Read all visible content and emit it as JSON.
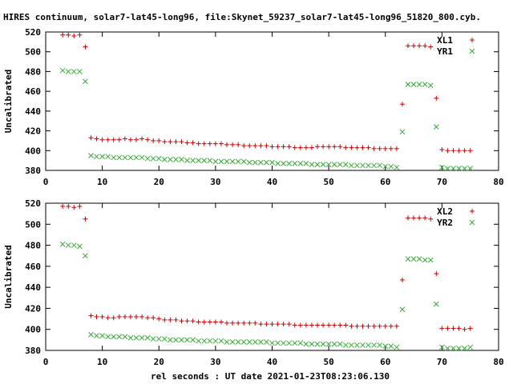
{
  "title": "HIRES continuum, solar7-lat45-long96, file:Skynet_59237_solar7-lat45-long96_51820_800.cyb.",
  "xlabel": "rel seconds : UT date 2021-01-23T08:23:06.130",
  "colors": {
    "red_series": "#cc0000",
    "green_series": "#33aa33",
    "axis": "#000000"
  },
  "chart_data": [
    {
      "type": "scatter",
      "ylabel": "Uncalibrated",
      "xlim": [
        0,
        80
      ],
      "ylim": [
        380,
        520
      ],
      "xticks": [
        0,
        10,
        20,
        30,
        40,
        50,
        60,
        70,
        80
      ],
      "yticks": [
        380,
        400,
        420,
        440,
        460,
        480,
        500,
        520
      ],
      "legend_position": "top-right",
      "series": [
        {
          "name": "XL1",
          "marker": "+",
          "color": "#cc0000",
          "x": [
            3,
            4,
            5,
            6,
            7,
            8,
            9,
            10,
            11,
            12,
            13,
            14,
            15,
            16,
            17,
            18,
            19,
            20,
            21,
            22,
            23,
            24,
            25,
            26,
            27,
            28,
            29,
            30,
            31,
            32,
            33,
            34,
            35,
            36,
            37,
            38,
            39,
            40,
            41,
            42,
            43,
            44,
            45,
            46,
            47,
            48,
            49,
            50,
            51,
            52,
            53,
            54,
            55,
            56,
            57,
            58,
            59,
            60,
            61,
            62,
            63,
            64,
            65,
            66,
            67,
            68,
            69,
            70,
            71,
            72,
            73,
            74,
            75
          ],
          "y": [
            517,
            517,
            516,
            517,
            505,
            413,
            412,
            411,
            411,
            411,
            411,
            412,
            411,
            411,
            412,
            411,
            410,
            410,
            409,
            409,
            409,
            409,
            408,
            408,
            407,
            407,
            407,
            407,
            407,
            406,
            406,
            406,
            405,
            405,
            405,
            405,
            405,
            404,
            404,
            404,
            404,
            403,
            403,
            403,
            403,
            404,
            404,
            404,
            404,
            404,
            403,
            403,
            403,
            403,
            403,
            402,
            402,
            402,
            402,
            402,
            447,
            506,
            506,
            506,
            506,
            505,
            453,
            401,
            400,
            400,
            400,
            400,
            400
          ]
        },
        {
          "name": "YR1",
          "marker": "x",
          "color": "#33aa33",
          "x": [
            3,
            4,
            5,
            6,
            7,
            8,
            9,
            10,
            11,
            12,
            13,
            14,
            15,
            16,
            17,
            18,
            19,
            20,
            21,
            22,
            23,
            24,
            25,
            26,
            27,
            28,
            29,
            30,
            31,
            32,
            33,
            34,
            35,
            36,
            37,
            38,
            39,
            40,
            41,
            42,
            43,
            44,
            45,
            46,
            47,
            48,
            49,
            50,
            51,
            52,
            53,
            54,
            55,
            56,
            57,
            58,
            59,
            60,
            61,
            62,
            63,
            64,
            65,
            66,
            67,
            68,
            69,
            70,
            71,
            72,
            73,
            74,
            75
          ],
          "y": [
            481,
            480,
            480,
            480,
            470,
            395,
            394,
            394,
            394,
            393,
            393,
            393,
            393,
            393,
            393,
            392,
            392,
            392,
            391,
            391,
            391,
            391,
            390,
            390,
            390,
            390,
            390,
            389,
            389,
            389,
            389,
            389,
            389,
            388,
            388,
            388,
            388,
            388,
            387,
            387,
            387,
            387,
            387,
            387,
            386,
            386,
            386,
            386,
            386,
            386,
            386,
            385,
            385,
            385,
            385,
            385,
            385,
            384,
            384,
            383,
            419,
            467,
            467,
            467,
            467,
            466,
            424,
            383,
            382,
            382,
            382,
            382,
            382
          ]
        }
      ]
    },
    {
      "type": "scatter",
      "ylabel": "Uncalibrated",
      "xlim": [
        0,
        80
      ],
      "ylim": [
        380,
        520
      ],
      "xticks": [
        0,
        10,
        20,
        30,
        40,
        50,
        60,
        70,
        80
      ],
      "yticks": [
        380,
        400,
        420,
        440,
        460,
        480,
        500,
        520
      ],
      "legend_position": "top-right",
      "series": [
        {
          "name": "XL2",
          "marker": "+",
          "color": "#cc0000",
          "x": [
            3,
            4,
            5,
            6,
            7,
            8,
            9,
            10,
            11,
            12,
            13,
            14,
            15,
            16,
            17,
            18,
            19,
            20,
            21,
            22,
            23,
            24,
            25,
            26,
            27,
            28,
            29,
            30,
            31,
            32,
            33,
            34,
            35,
            36,
            37,
            38,
            39,
            40,
            41,
            42,
            43,
            44,
            45,
            46,
            47,
            48,
            49,
            50,
            51,
            52,
            53,
            54,
            55,
            56,
            57,
            58,
            59,
            60,
            61,
            62,
            63,
            64,
            65,
            66,
            67,
            68,
            69,
            70,
            71,
            72,
            73,
            74,
            75
          ],
          "y": [
            517,
            517,
            516,
            517,
            505,
            413,
            412,
            412,
            411,
            411,
            412,
            412,
            412,
            412,
            412,
            411,
            411,
            410,
            409,
            409,
            409,
            408,
            408,
            408,
            407,
            407,
            407,
            407,
            407,
            406,
            406,
            406,
            406,
            406,
            406,
            405,
            405,
            405,
            405,
            405,
            405,
            404,
            404,
            404,
            404,
            404,
            404,
            404,
            404,
            404,
            404,
            403,
            403,
            403,
            403,
            403,
            403,
            403,
            403,
            403,
            447,
            506,
            506,
            506,
            506,
            505,
            453,
            401,
            401,
            401,
            401,
            400,
            401
          ]
        },
        {
          "name": "YR2",
          "marker": "x",
          "color": "#33aa33",
          "x": [
            3,
            4,
            5,
            6,
            7,
            8,
            9,
            10,
            11,
            12,
            13,
            14,
            15,
            16,
            17,
            18,
            19,
            20,
            21,
            22,
            23,
            24,
            25,
            26,
            27,
            28,
            29,
            30,
            31,
            32,
            33,
            34,
            35,
            36,
            37,
            38,
            39,
            40,
            41,
            42,
            43,
            44,
            45,
            46,
            47,
            48,
            49,
            50,
            51,
            52,
            53,
            54,
            55,
            56,
            57,
            58,
            59,
            60,
            61,
            62,
            63,
            64,
            65,
            66,
            67,
            68,
            69,
            70,
            71,
            72,
            73,
            74,
            75
          ],
          "y": [
            481,
            480,
            480,
            479,
            470,
            395,
            394,
            394,
            393,
            393,
            393,
            393,
            392,
            392,
            392,
            392,
            391,
            391,
            391,
            390,
            390,
            390,
            390,
            390,
            389,
            389,
            389,
            389,
            389,
            388,
            388,
            388,
            388,
            388,
            388,
            388,
            388,
            387,
            387,
            387,
            387,
            387,
            387,
            386,
            386,
            386,
            386,
            386,
            386,
            386,
            385,
            385,
            385,
            385,
            385,
            385,
            385,
            384,
            384,
            383,
            419,
            467,
            467,
            467,
            466,
            466,
            424,
            383,
            382,
            382,
            382,
            382,
            383
          ]
        }
      ]
    }
  ]
}
